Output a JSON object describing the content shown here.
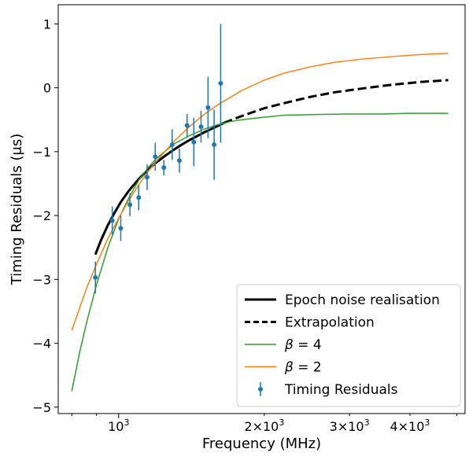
{
  "chart_data": {
    "type": "line",
    "xlabel": "Frequency (MHz)",
    "ylabel": "Timing Residuals (μs)",
    "xscale": "log",
    "xlim": [
      750,
      5200
    ],
    "ylim": [
      -5.1,
      1.3
    ],
    "grid": false,
    "legend_position": "bottom-right",
    "x_ticks": [
      {
        "value": 1000,
        "mantissa": "",
        "exp": "3"
      },
      {
        "value": 2000,
        "mantissa": "2×",
        "exp": "3"
      },
      {
        "value": 3000,
        "mantissa": "3×",
        "exp": "3"
      },
      {
        "value": 4000,
        "mantissa": "4×",
        "exp": "3"
      }
    ],
    "y_ticks": [
      {
        "value": 1,
        "label": "1"
      },
      {
        "value": 0,
        "label": "0"
      },
      {
        "value": -1,
        "label": "−1"
      },
      {
        "value": -2,
        "label": "−2"
      },
      {
        "value": -3,
        "label": "−3"
      },
      {
        "value": -4,
        "label": "−4"
      },
      {
        "value": -5,
        "label": "−5"
      }
    ],
    "series": [
      {
        "name": "Epoch noise realisation",
        "color": "#000000",
        "style": "solid",
        "x": [
          895,
          920,
          950,
          980,
          1010,
          1050,
          1100,
          1150,
          1200,
          1250,
          1300,
          1350,
          1400,
          1450,
          1500,
          1550,
          1600,
          1650
        ],
        "y": [
          -2.61,
          -2.38,
          -2.15,
          -1.96,
          -1.79,
          -1.61,
          -1.43,
          -1.28,
          -1.16,
          -1.06,
          -0.97,
          -0.89,
          -0.82,
          -0.76,
          -0.7,
          -0.65,
          -0.6,
          -0.55
        ]
      },
      {
        "name": "Extrapolation",
        "color": "#000000",
        "style": "dashed",
        "x": [
          1650,
          1800,
          2000,
          2200,
          2500,
          2800,
          3200,
          3700,
          4200,
          4800
        ],
        "y": [
          -0.55,
          -0.44,
          -0.32,
          -0.24,
          -0.14,
          -0.07,
          -0.01,
          0.05,
          0.09,
          0.12
        ]
      },
      {
        "name": "β = 4",
        "color": "#2ca02c",
        "style": "solid",
        "x": [
          800,
          830,
          860,
          900,
          950,
          1000,
          1050,
          1100,
          1150,
          1200,
          1300,
          1400,
          1500,
          1600,
          1700,
          1800,
          2000,
          2200,
          2500,
          3000,
          3500,
          4000,
          4800
        ],
        "y": [
          -4.75,
          -4.15,
          -3.65,
          -3.08,
          -2.5,
          -2.05,
          -1.72,
          -1.45,
          -1.25,
          -1.1,
          -0.88,
          -0.75,
          -0.65,
          -0.58,
          -0.53,
          -0.5,
          -0.46,
          -0.43,
          -0.42,
          -0.41,
          -0.41,
          -0.4,
          -0.4
        ]
      },
      {
        "name": "β = 2",
        "color": "#ff7f0e",
        "style": "solid",
        "x": [
          800,
          830,
          860,
          900,
          950,
          1000,
          1050,
          1100,
          1150,
          1200,
          1300,
          1400,
          1500,
          1600,
          1800,
          2000,
          2200,
          2500,
          2800,
          3200,
          3700,
          4200,
          4800
        ],
        "y": [
          -3.8,
          -3.45,
          -3.12,
          -2.76,
          -2.36,
          -2.04,
          -1.76,
          -1.52,
          -1.31,
          -1.14,
          -0.84,
          -0.61,
          -0.42,
          -0.27,
          -0.04,
          0.12,
          0.23,
          0.33,
          0.4,
          0.45,
          0.49,
          0.52,
          0.54
        ]
      }
    ],
    "errorbar_series": {
      "name": "Timing Residuals",
      "color": "#1f77b4",
      "points": [
        {
          "x": 895,
          "y": -2.97,
          "err": 0.25
        },
        {
          "x": 970,
          "y": -2.08,
          "err": 0.22
        },
        {
          "x": 1010,
          "y": -2.2,
          "err": 0.2
        },
        {
          "x": 1055,
          "y": -1.83,
          "err": 0.18
        },
        {
          "x": 1100,
          "y": -1.72,
          "err": 0.2
        },
        {
          "x": 1145,
          "y": -1.4,
          "err": 0.2
        },
        {
          "x": 1190,
          "y": -1.08,
          "err": 0.22
        },
        {
          "x": 1240,
          "y": -1.25,
          "err": 0.12
        },
        {
          "x": 1290,
          "y": -0.89,
          "err": 0.24
        },
        {
          "x": 1335,
          "y": -1.14,
          "err": 0.19
        },
        {
          "x": 1385,
          "y": -0.59,
          "err": 0.18
        },
        {
          "x": 1430,
          "y": -0.85,
          "err": 0.38
        },
        {
          "x": 1480,
          "y": -0.61,
          "err": 0.25
        },
        {
          "x": 1530,
          "y": -0.31,
          "err": 0.48
        },
        {
          "x": 1575,
          "y": -0.89,
          "err": 0.55
        },
        {
          "x": 1625,
          "y": 0.07,
          "err": 0.93
        }
      ]
    },
    "legend": [
      {
        "label": "Epoch noise realisation",
        "kind": "line",
        "color": "#000000",
        "style": "solid"
      },
      {
        "label": "Extrapolation",
        "kind": "line",
        "color": "#000000",
        "style": "dashed"
      },
      {
        "kind": "line",
        "color": "#2ca02c",
        "style": "solid",
        "math_var": "β",
        "math_rest": " = 4"
      },
      {
        "kind": "line",
        "color": "#ff7f0e",
        "style": "solid",
        "math_var": "β",
        "math_rest": " = 2"
      },
      {
        "label": "Timing Residuals",
        "kind": "errorbar",
        "color": "#1f77b4"
      }
    ]
  }
}
